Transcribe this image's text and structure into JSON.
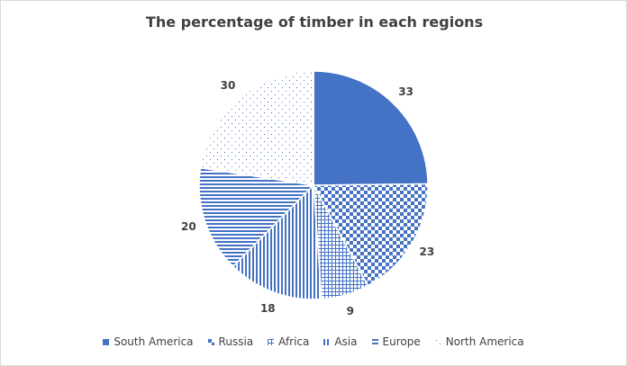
{
  "chart_data": {
    "type": "pie",
    "title": "The percentage of timber in each regions",
    "categories": [
      "South America",
      "Russia",
      "Africa",
      "Asia",
      "Europe",
      "North America"
    ],
    "values": [
      33,
      23,
      9,
      18,
      20,
      30
    ],
    "legend_position": "bottom",
    "colors": {
      "fill": "#4472c4",
      "pattern_bg": "#ffffff",
      "label": "#404040"
    },
    "patterns": [
      "solid",
      "checker",
      "grid",
      "vertical-lines",
      "horizontal-lines",
      "dots"
    ]
  }
}
